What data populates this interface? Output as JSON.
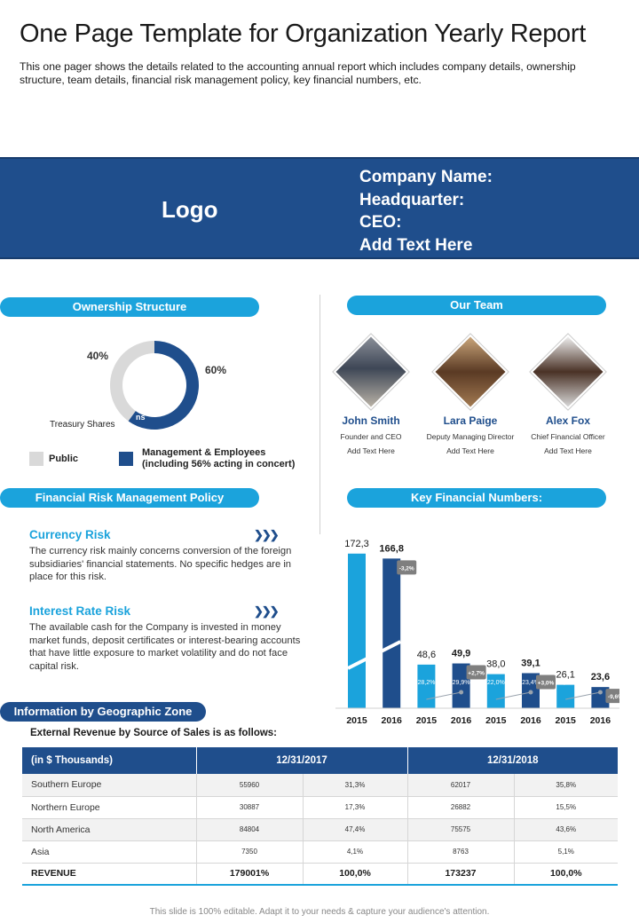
{
  "header": {
    "title": "One Page Template for Organization Yearly Report",
    "subtitle": "This one pager shows the details related to the accounting annual report which includes company details, ownership structure, team details, financial risk management policy, key financial numbers, etc."
  },
  "banner": {
    "logo": "Logo",
    "company_name": "Company Name:",
    "headquarter": "Headquarter:",
    "ceo": "CEO:",
    "add_text": "Add Text Here"
  },
  "ownership": {
    "title": "Ownership Structure",
    "public_pct": "40%",
    "management_pct": "60%",
    "treasury_label": "Treasury Shares",
    "ns_label": "ns",
    "legend_public": "Public",
    "legend_management_1": "Management & Employees",
    "legend_management_2": "(including 56% acting in concert)",
    "public_share": 0.4,
    "management_share": 0.6,
    "colors": {
      "public": "#d9d9d9",
      "management": "#1f4e8c"
    }
  },
  "team": {
    "title": "Our Team",
    "members": [
      {
        "name": "John Smith",
        "role": "Founder and CEO",
        "text": "Add Text Here"
      },
      {
        "name": "Lara Paige",
        "role": "Deputy Managing Director",
        "text": "Add Text Here"
      },
      {
        "name": "Alex Fox",
        "role": "Chief Financial Officer",
        "text": "Add Text Here"
      }
    ]
  },
  "risk": {
    "title": "Financial Risk Management Policy",
    "currency_title": "Currency Risk",
    "currency_text": "The currency risk mainly concerns conversion of the foreign subsidiaries' financial statements. No specific hedges are in place for this risk.",
    "interest_title": "Interest Rate Risk",
    "interest_text": "The available cash for the Company is invested in money market funds, deposit certificates or interest-bearing accounts that have little exposure to market volatility and do not face capital risk.",
    "arrows": "❯❯❯"
  },
  "financials": {
    "title": "Key Financial Numbers:"
  },
  "chart_data": {
    "type": "bar",
    "categories": [
      "2015",
      "2016",
      "2015",
      "2016",
      "2015",
      "2016",
      "2015",
      "2016"
    ],
    "values": [
      172.3,
      166.8,
      48.6,
      49.9,
      38.0,
      39.1,
      26.1,
      23.6
    ],
    "value_labels": [
      "172,3",
      "166,8",
      "48,6",
      "49,9",
      "38,0",
      "39,1",
      "26,1",
      "23,6"
    ],
    "margin_labels": [
      "",
      "",
      "28,2%",
      "29,9%",
      "22,0%",
      "23,4%",
      "15,1%",
      "14,1%"
    ],
    "change_badges": [
      "",
      "-3,2%",
      "",
      "+2,7%",
      "",
      "+3,0%",
      "",
      "-9,6%"
    ],
    "colors": {
      "2015": "#1ba3dc",
      "2016": "#1f4e8c"
    },
    "ylim": [
      0,
      180
    ]
  },
  "geo": {
    "title": "Information by Geographic Zone",
    "caption": "External Revenue by Source of Sales is as follows:",
    "col_unit": "(in $ Thousands)",
    "col_2017": "12/31/2017",
    "col_2018": "12/31/2018",
    "rows": [
      [
        "Southern Europe",
        "55960",
        "31,3%",
        "62017",
        "35,8%"
      ],
      [
        "Northern Europe",
        "30887",
        "17,3%",
        "26882",
        "15,5%"
      ],
      [
        "North America",
        "84804",
        "47,4%",
        "75575",
        "43,6%"
      ],
      [
        "Asia",
        "7350",
        "4,1%",
        "8763",
        "5,1%"
      ]
    ],
    "total": [
      "REVENUE",
      "179001%",
      "100,0%",
      "173237",
      "100,0%"
    ]
  },
  "footer": "This slide is 100% editable.  Adapt it to your needs & capture your audience's attention."
}
